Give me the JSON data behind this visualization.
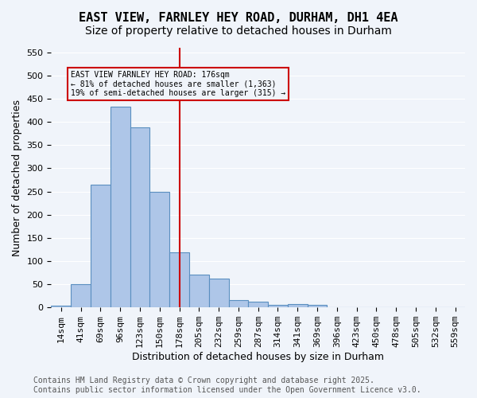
{
  "title1": "EAST VIEW, FARNLEY HEY ROAD, DURHAM, DH1 4EA",
  "title2": "Size of property relative to detached houses in Durham",
  "xlabel": "Distribution of detached houses by size in Durham",
  "ylabel": "Number of detached properties",
  "bin_labels": [
    "14sqm",
    "41sqm",
    "69sqm",
    "96sqm",
    "123sqm",
    "150sqm",
    "178sqm",
    "205sqm",
    "232sqm",
    "259sqm",
    "287sqm",
    "314sqm",
    "341sqm",
    "369sqm",
    "396sqm",
    "423sqm",
    "450sqm",
    "478sqm",
    "505sqm",
    "532sqm",
    "559sqm"
  ],
  "bar_values": [
    3,
    50,
    265,
    433,
    388,
    250,
    118,
    70,
    63,
    15,
    13,
    6,
    8,
    5,
    1,
    0,
    1,
    0,
    0,
    1,
    0
  ],
  "bar_color": "#aec6e8",
  "bar_edge_color": "#5a8fc0",
  "vline_x": 6,
  "vline_color": "#cc0000",
  "annotation_text": "EAST VIEW FARNLEY HEY ROAD: 176sqm\n← 81% of detached houses are smaller (1,363)\n19% of semi-detached houses are larger (315) →",
  "annotation_box_color": "#cc0000",
  "ylim": [
    0,
    560
  ],
  "yticks": [
    0,
    50,
    100,
    150,
    200,
    250,
    300,
    350,
    400,
    450,
    500,
    550
  ],
  "footnote": "Contains HM Land Registry data © Crown copyright and database right 2025.\nContains public sector information licensed under the Open Government Licence v3.0.",
  "bg_color": "#f0f4fa",
  "grid_color": "#ffffff",
  "title_fontsize": 11,
  "subtitle_fontsize": 10,
  "axis_label_fontsize": 9,
  "tick_fontsize": 8,
  "footnote_fontsize": 7
}
